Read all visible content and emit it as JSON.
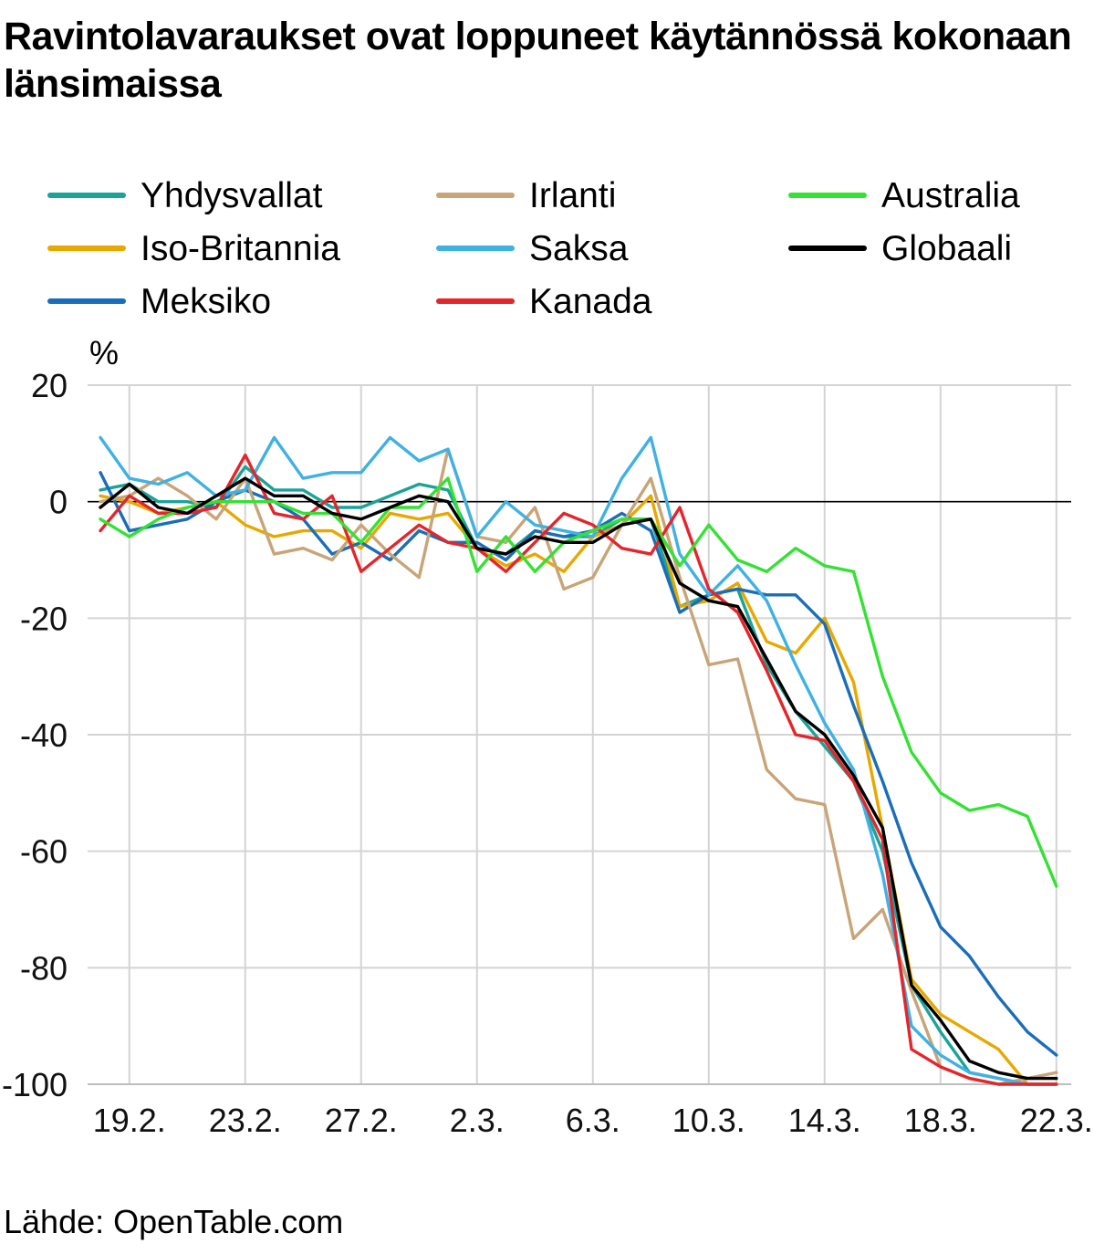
{
  "title": "Ravintolavaraukset ovat loppuneet käytännössä kokonaan länsimaissa",
  "source": "Lähde: OpenTable.com",
  "chart_data": {
    "type": "line",
    "ylabel": "%",
    "xlabel": "",
    "ylim": [
      -100,
      20
    ],
    "yticks": [
      20,
      0,
      -20,
      -40,
      -60,
      -80,
      -100
    ],
    "ytick_labels": [
      "20",
      "0",
      "-20",
      "-40",
      "-60",
      "-80",
      "-100"
    ],
    "x": [
      "18.2.",
      "19.2.",
      "20.2.",
      "21.2.",
      "22.2.",
      "23.2.",
      "24.2.",
      "25.2.",
      "26.2.",
      "27.2.",
      "28.2.",
      "29.2.",
      "1.3.",
      "2.3.",
      "3.3.",
      "4.3.",
      "5.3.",
      "6.3.",
      "7.3.",
      "8.3.",
      "9.3.",
      "10.3.",
      "11.3.",
      "12.3.",
      "13.3.",
      "14.3.",
      "15.3.",
      "16.3.",
      "17.3.",
      "18.3.",
      "19.3.",
      "20.3.",
      "21.3.",
      "22.3."
    ],
    "xticks": [
      "19.2.",
      "23.2.",
      "27.2.",
      "2.3.",
      "6.3.",
      "10.3.",
      "14.3.",
      "18.3.",
      "22.3."
    ],
    "grid": true,
    "legend_position": "top",
    "series": [
      {
        "name": "Yhdysvallat",
        "color": "#1aa398",
        "values": [
          2,
          3,
          0,
          0,
          -1,
          6,
          2,
          2,
          -1,
          -1,
          1,
          3,
          2,
          -8,
          -9,
          -5,
          -6,
          -6,
          -3,
          -3,
          -18,
          -16,
          -15,
          -28,
          -36,
          -42,
          -48,
          -60,
          -83,
          -91,
          -98,
          -99,
          -100,
          -100
        ]
      },
      {
        "name": "Iso-Britannia",
        "color": "#e8a800",
        "values": [
          1,
          0,
          -2,
          -1,
          0,
          -4,
          -6,
          -5,
          -5,
          -8,
          -2,
          -3,
          -2,
          -8,
          -11,
          -9,
          -12,
          -6,
          -4,
          1,
          -18,
          -17,
          -14,
          -24,
          -26,
          -20,
          -31,
          -56,
          -82,
          -88,
          -91,
          -94,
          -100,
          -100
        ]
      },
      {
        "name": "Meksiko",
        "color": "#1a6eb9",
        "values": [
          5,
          -5,
          -4,
          -3,
          0,
          2,
          0,
          -3,
          -9,
          -7,
          -10,
          -5,
          -7,
          -7,
          -10,
          -5,
          -6,
          -5,
          -2,
          -5,
          -19,
          -16,
          -15,
          -16,
          -16,
          -21,
          -35,
          -48,
          -62,
          -73,
          -78,
          -85,
          -91,
          -95
        ]
      },
      {
        "name": "Irlanti",
        "color": "#c8a477",
        "values": [
          0,
          1,
          4,
          1,
          -3,
          4,
          -9,
          -8,
          -10,
          -4,
          -9,
          -13,
          9,
          -6,
          -7,
          -1,
          -15,
          -13,
          -4,
          4,
          -13,
          -28,
          -27,
          -46,
          -51,
          -52,
          -75,
          -70,
          -84,
          -97,
          -99,
          -100,
          -99,
          -98
        ]
      },
      {
        "name": "Saksa",
        "color": "#3fb1e3",
        "values": [
          11,
          4,
          3,
          5,
          1,
          2,
          11,
          4,
          5,
          5,
          11,
          7,
          9,
          -6,
          0,
          -4,
          -5,
          -6,
          4,
          11,
          -9,
          -16,
          -11,
          -17,
          -28,
          -38,
          -46,
          -64,
          -90,
          -95,
          -98,
          -99,
          -100,
          -100
        ]
      },
      {
        "name": "Kanada",
        "color": "#e4252b",
        "values": [
          -5,
          1,
          -2,
          -2,
          -1,
          8,
          -2,
          -3,
          1,
          -12,
          -8,
          -4,
          -7,
          -8,
          -12,
          -7,
          -2,
          -4,
          -8,
          -9,
          -1,
          -15,
          -19,
          -29,
          -40,
          -41,
          -48,
          -58,
          -94,
          -97,
          -99,
          -100,
          -100,
          -100
        ]
      },
      {
        "name": "Australia",
        "color": "#33e233",
        "values": [
          -3,
          -6,
          -3,
          -1,
          0,
          0,
          0,
          -2,
          -2,
          -7,
          -1,
          -1,
          4,
          -12,
          -6,
          -12,
          -7,
          -5,
          -3,
          -3,
          -11,
          -4,
          -10,
          -12,
          -8,
          -11,
          -12,
          -30,
          -43,
          -50,
          -53,
          -52,
          -54,
          -66
        ]
      },
      {
        "name": "Globaali",
        "color": "#000000",
        "values": [
          -1,
          3,
          -1,
          -2,
          1,
          4,
          1,
          1,
          -2,
          -3,
          -1,
          1,
          0,
          -8,
          -9,
          -6,
          -7,
          -7,
          -4,
          -3,
          -14,
          -17,
          -18,
          -27,
          -36,
          -40,
          -47,
          -56,
          -83,
          -89,
          -96,
          -98,
          -99,
          -99
        ]
      }
    ]
  },
  "legend_layout": [
    {
      "series": 0,
      "col": 0,
      "row": 0
    },
    {
      "series": 3,
      "col": 1,
      "row": 0
    },
    {
      "series": 6,
      "col": 2,
      "row": 0
    },
    {
      "series": 1,
      "col": 0,
      "row": 1
    },
    {
      "series": 4,
      "col": 1,
      "row": 1
    },
    {
      "series": 7,
      "col": 2,
      "row": 1
    },
    {
      "series": 2,
      "col": 0,
      "row": 2
    },
    {
      "series": 5,
      "col": 1,
      "row": 2
    }
  ]
}
